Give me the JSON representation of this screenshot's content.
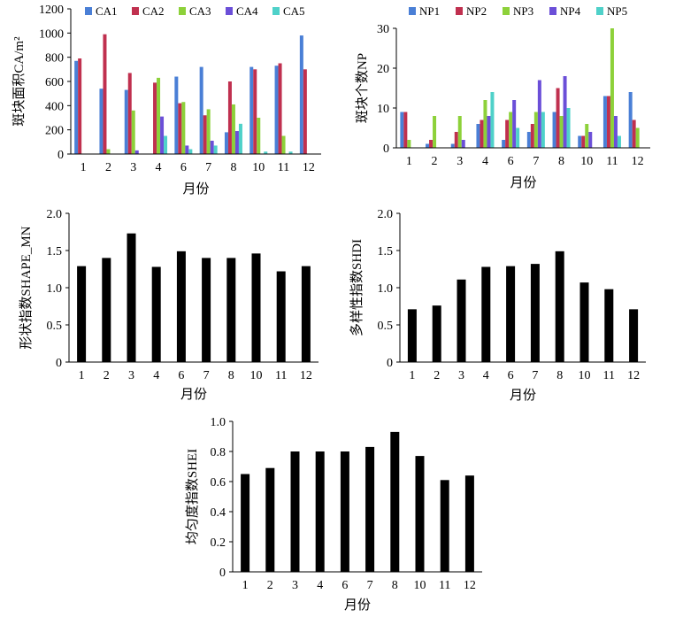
{
  "chart_data": [
    {
      "id": "ca",
      "type": "bar",
      "xlabel": "月份",
      "ylabel": "斑块面积CA/m²",
      "ylim": [
        0,
        1200
      ],
      "yticks": [
        "0",
        "200",
        "400",
        "600",
        "800",
        "1000",
        "1200"
      ],
      "categories": [
        "1",
        "2",
        "3",
        "4",
        "6",
        "7",
        "8",
        "10",
        "11",
        "12"
      ],
      "legend_position": "top",
      "series": [
        {
          "name": "CA1",
          "color": "#4a7fd6",
          "values": [
            770,
            540,
            530,
            0,
            640,
            720,
            180,
            720,
            730,
            980
          ]
        },
        {
          "name": "CA2",
          "color": "#c0304f",
          "values": [
            790,
            990,
            670,
            590,
            420,
            320,
            600,
            700,
            750,
            700
          ]
        },
        {
          "name": "CA3",
          "color": "#8dd13a",
          "values": [
            0,
            40,
            360,
            630,
            430,
            370,
            410,
            300,
            150,
            0
          ]
        },
        {
          "name": "CA4",
          "color": "#6b4fd8",
          "values": [
            0,
            0,
            30,
            310,
            70,
            110,
            190,
            0,
            0,
            0
          ]
        },
        {
          "name": "CA5",
          "color": "#4fd1c9",
          "values": [
            0,
            0,
            0,
            150,
            40,
            70,
            250,
            20,
            20,
            0
          ]
        }
      ]
    },
    {
      "id": "np",
      "type": "bar",
      "xlabel": "月份",
      "ylabel": "斑块个数NP",
      "ylim": [
        0,
        30
      ],
      "yticks": [
        "0",
        "10",
        "20",
        "30"
      ],
      "categories": [
        "1",
        "2",
        "3",
        "4",
        "6",
        "7",
        "8",
        "10",
        "11",
        "12"
      ],
      "legend_position": "top",
      "series": [
        {
          "name": "NP1",
          "color": "#4a7fd6",
          "values": [
            9,
            1,
            1,
            6,
            2,
            4,
            9,
            3,
            13,
            14
          ]
        },
        {
          "name": "NP2",
          "color": "#c0304f",
          "values": [
            9,
            2,
            4,
            7,
            7,
            6,
            15,
            3,
            13,
            7
          ]
        },
        {
          "name": "NP3",
          "color": "#8dd13a",
          "values": [
            2,
            8,
            8,
            12,
            9,
            9,
            8,
            6,
            30,
            5
          ]
        },
        {
          "name": "NP4",
          "color": "#6b4fd8",
          "values": [
            0,
            0,
            2,
            8,
            12,
            17,
            18,
            4,
            8,
            0
          ]
        },
        {
          "name": "NP5",
          "color": "#4fd1c9",
          "values": [
            0,
            0,
            0,
            14,
            5,
            9,
            10,
            0,
            3,
            0
          ]
        }
      ]
    },
    {
      "id": "shape",
      "type": "bar",
      "xlabel": "月份",
      "ylabel": "形状指数SHAPE_MN",
      "ylim": [
        0,
        2
      ],
      "yticks": [
        "0",
        "0.5",
        "1.0",
        "1.5",
        "2.0"
      ],
      "categories": [
        "1",
        "2",
        "3",
        "4",
        "6",
        "7",
        "8",
        "10",
        "11",
        "12"
      ],
      "series": [
        {
          "color": "#000000",
          "values": [
            1.29,
            1.4,
            1.73,
            1.28,
            1.49,
            1.4,
            1.4,
            1.46,
            1.22,
            1.29
          ]
        }
      ]
    },
    {
      "id": "shdi",
      "type": "bar",
      "xlabel": "月份",
      "ylabel": "多样性指数SHDI",
      "ylim": [
        0,
        2
      ],
      "yticks": [
        "0",
        "0.5",
        "1.0",
        "1.5",
        "2.0"
      ],
      "categories": [
        "1",
        "2",
        "3",
        "4",
        "6",
        "7",
        "8",
        "10",
        "11",
        "12"
      ],
      "series": [
        {
          "color": "#000000",
          "values": [
            0.71,
            0.76,
            1.11,
            1.28,
            1.29,
            1.32,
            1.49,
            1.07,
            0.98,
            0.71
          ]
        }
      ]
    },
    {
      "id": "shei",
      "type": "bar",
      "xlabel": "月份",
      "ylabel": "均匀度指数SHEI",
      "ylim": [
        0,
        1
      ],
      "yticks": [
        "0",
        "0.2",
        "0.4",
        "0.6",
        "0.8",
        "1.0"
      ],
      "categories": [
        "1",
        "2",
        "3",
        "4",
        "6",
        "7",
        "8",
        "10",
        "11",
        "12"
      ],
      "series": [
        {
          "color": "#000000",
          "values": [
            0.65,
            0.69,
            0.8,
            0.8,
            0.8,
            0.83,
            0.93,
            0.77,
            0.61,
            0.64
          ]
        }
      ]
    }
  ]
}
